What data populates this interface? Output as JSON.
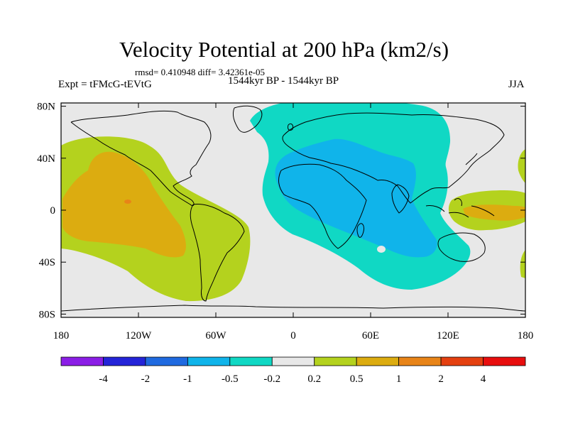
{
  "title": "Velocity Potential at 200 hPa (km2/s)",
  "stats": "rmsd= 0.410948 diff= 3.42361e-05",
  "left_label": "Expt = tFMcG-tEVtG",
  "center_label": "1544kyr BP - 1544kyr BP",
  "right_label": "JJA",
  "chart_data": {
    "type": "heatmap",
    "title": "Velocity Potential at 200 hPa (km2/s)",
    "subtitle": "1544kyr BP - 1544kyr BP",
    "xlabel": "",
    "ylabel": "",
    "xlim": [
      -180,
      180
    ],
    "ylim": [
      -90,
      90
    ],
    "x_ticks": [
      {
        "value": -180,
        "label": "180"
      },
      {
        "value": -120,
        "label": "120W"
      },
      {
        "value": -60,
        "label": "60W"
      },
      {
        "value": 0,
        "label": "0"
      },
      {
        "value": 60,
        "label": "60E"
      },
      {
        "value": 120,
        "label": "120E"
      },
      {
        "value": 180,
        "label": "180"
      }
    ],
    "y_ticks": [
      {
        "value": 80,
        "label": "80N"
      },
      {
        "value": 40,
        "label": "40N"
      },
      {
        "value": 0,
        "label": "0"
      },
      {
        "value": -40,
        "label": "40S"
      },
      {
        "value": -80,
        "label": "80S"
      }
    ],
    "colorbar": {
      "colors": [
        "#8b1ee6",
        "#2424d8",
        "#1f6ae0",
        "#10b4ea",
        "#10d8c4",
        "#e8e8e8",
        "#b4d21e",
        "#dcac10",
        "#e88418",
        "#e44010",
        "#e80e0e"
      ],
      "labels": [
        "-4",
        "-2",
        "-1",
        "-0.5",
        "-0.2",
        "0.2",
        "0.5",
        "1",
        "2",
        "4"
      ]
    },
    "regions": [
      {
        "name": "pacific-positive",
        "level": "0.2 to 0.5",
        "color": "#b4d21e"
      },
      {
        "name": "pacific-core",
        "level": "0.5 to 1",
        "color": "#dcac10"
      },
      {
        "name": "pacific-max",
        "level": "1 to 2",
        "color": "#e88418"
      },
      {
        "name": "eurasia-africa-negative",
        "level": "-0.5 to -0.2",
        "color": "#10d8c4"
      },
      {
        "name": "africa-core",
        "level": "-1 to -0.5",
        "color": "#10b4ea"
      },
      {
        "name": "maritime-continent-positive",
        "level": "0.2 to 0.5",
        "color": "#b4d21e"
      },
      {
        "name": "maritime-continent-core",
        "level": "0.5 to 1",
        "color": "#dcac10"
      }
    ]
  }
}
